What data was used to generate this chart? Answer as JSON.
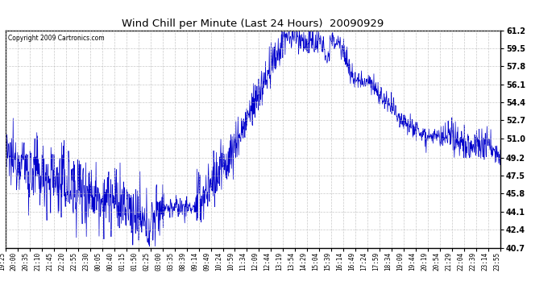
{
  "title": "Wind Chill per Minute (Last 24 Hours)  20090929",
  "copyright": "Copyright 2009 Cartronics.com",
  "line_color": "#0000CC",
  "bg_color": "#ffffff",
  "plot_bg_color": "#ffffff",
  "grid_color": "#bbbbbb",
  "ylim": [
    40.7,
    61.2
  ],
  "yticks": [
    40.7,
    42.4,
    44.1,
    45.8,
    47.5,
    49.2,
    51.0,
    52.7,
    54.4,
    56.1,
    57.8,
    59.5,
    61.2
  ],
  "xlabel_rotation": 90,
  "xtick_labels": [
    "19:25",
    "20:00",
    "20:35",
    "21:10",
    "21:45",
    "22:20",
    "22:55",
    "23:30",
    "00:05",
    "00:40",
    "01:15",
    "01:50",
    "02:25",
    "03:00",
    "03:35",
    "08:39",
    "09:14",
    "09:49",
    "10:24",
    "10:59",
    "11:34",
    "12:09",
    "12:44",
    "13:19",
    "13:54",
    "14:29",
    "15:04",
    "15:39",
    "16:14",
    "16:49",
    "17:24",
    "17:59",
    "18:34",
    "19:09",
    "19:44",
    "20:19",
    "20:54",
    "21:29",
    "22:04",
    "22:39",
    "23:14",
    "23:55"
  ],
  "figsize": [
    6.9,
    3.75
  ],
  "dpi": 100
}
